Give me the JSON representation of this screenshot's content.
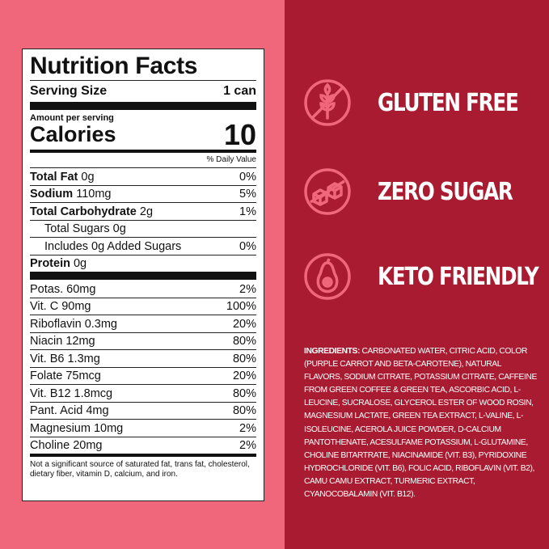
{
  "colors": {
    "left_bg": "#f0677b",
    "right_bg": "#a81b30",
    "icon": "#f0677b"
  },
  "nutrition": {
    "title": "Nutrition Facts",
    "serving_size_label": "Serving Size",
    "serving_size_value": "1 can",
    "amount_per_serving": "Amount per serving",
    "calories_label": "Calories",
    "calories_value": "10",
    "daily_value_header": "% Daily Value",
    "macros": [
      {
        "name": "Total Fat",
        "amount": "0g",
        "dv": "0%",
        "bold": true
      },
      {
        "name": "Sodium",
        "amount": "110mg",
        "dv": "5%",
        "bold": true
      },
      {
        "name": "Total Carbohydrate",
        "amount": "2g",
        "dv": "1%",
        "bold": true
      },
      {
        "name": "Total Sugars",
        "amount": "0g",
        "dv": "",
        "indent": 1
      },
      {
        "name": "Includes 0g Added Sugars",
        "amount": "",
        "dv": "0%",
        "indent": 2
      },
      {
        "name": "Protein",
        "amount": "0g",
        "dv": "",
        "bold": true
      }
    ],
    "micros": [
      {
        "name": "Potas. 60mg",
        "dv": "2%"
      },
      {
        "name": "Vit. C 90mg",
        "dv": "100%"
      },
      {
        "name": "Riboflavin 0.3mg",
        "dv": "20%"
      },
      {
        "name": "Niacin 12mg",
        "dv": "80%"
      },
      {
        "name": "Vit. B6 1.3mg",
        "dv": "80%"
      },
      {
        "name": "Folate 75mcg",
        "dv": "20%"
      },
      {
        "name": "Vit. B12 1.8mcg",
        "dv": "80%"
      },
      {
        "name": "Pant. Acid 4mg",
        "dv": "80%"
      },
      {
        "name": "Magnesium 10mg",
        "dv": "2%"
      },
      {
        "name": "Choline 20mg",
        "dv": "2%"
      }
    ],
    "footnote": "Not a significant source of saturated fat, trans fat, cholesterol, dietary fiber, vitamin D, calcium, and iron."
  },
  "claims": [
    {
      "label": "GLUTEN FREE",
      "icon": "no-wheat-icon"
    },
    {
      "label": "ZERO SUGAR",
      "icon": "no-sugar-cubes-icon"
    },
    {
      "label": "KETO FRIENDLY",
      "icon": "avocado-icon"
    }
  ],
  "ingredients": {
    "heading": "INGREDIENTS:",
    "text": "CARBONATED WATER, CITRIC ACID, COLOR (PURPLE CARROT AND BETA-CAROTENE), NATURAL FLAVORS, SODIUM CITRATE, POTASSIUM CITRATE, CAFFEINE FROM GREEN COFFEE & GREEN TEA, ASCORBIC ACID, L-LEUCINE, SUCRALOSE, GLYCEROL ESTER OF WOOD ROSIN, MAGNESIUM LACTATE, GREEN TEA EXTRACT, L-VALINE, L-ISOLEUCINE, ACEROLA JUICE POWDER, D-CALCIUM PANTOTHENATE, ACESULFAME POTASSIUM, L-GLUTAMINE, CHOLINE BITARTRATE, NIACINAMIDE (VIT. B3), PYRIDOXINE HYDROCHLORIDE (VIT. B6), FOLIC ACID, RIBOFLAVIN (VIT. B2), CAMU CAMU EXTRACT, TURMERIC EXTRACT, CYANOCOBALAMIN (VIT. B12)."
  }
}
